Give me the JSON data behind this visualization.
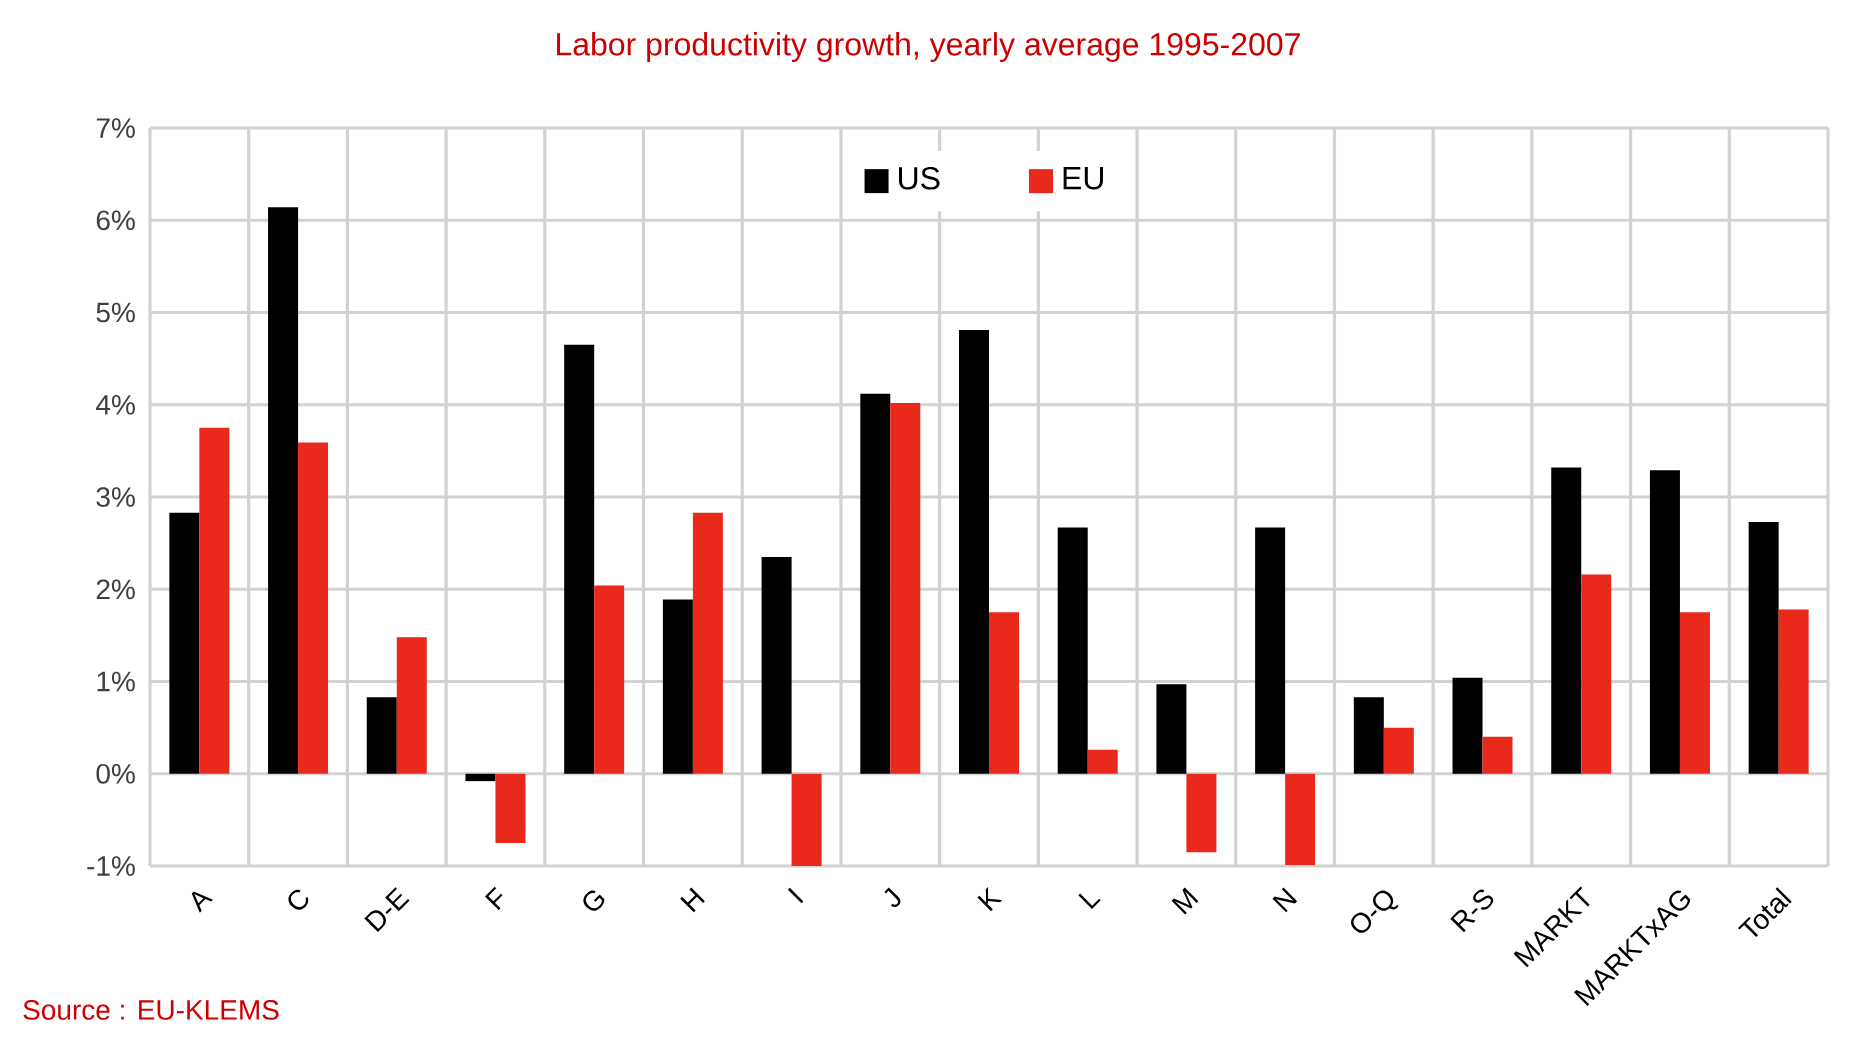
{
  "chart_data": {
    "type": "bar",
    "title": "Labor productivity growth, yearly average 1995-2007",
    "categories": [
      "A",
      "C",
      "D-E",
      "F",
      "G",
      "H",
      "I",
      "J",
      "K",
      "L",
      "M",
      "N",
      "O-Q",
      "R-S",
      "MARKT",
      "MARKTxAG",
      "Total"
    ],
    "series": [
      {
        "name": "US",
        "color": "#000000",
        "values": [
          2.83,
          6.14,
          0.83,
          -0.08,
          4.65,
          1.89,
          2.35,
          4.12,
          4.81,
          2.67,
          0.97,
          2.67,
          0.83,
          1.04,
          3.32,
          3.29,
          2.73
        ]
      },
      {
        "name": "EU",
        "color": "#e8291c",
        "values": [
          3.75,
          3.59,
          1.48,
          -0.75,
          2.04,
          2.83,
          -1.0,
          4.02,
          1.75,
          0.26,
          -0.85,
          -0.99,
          0.5,
          0.4,
          2.16,
          1.75,
          1.78
        ]
      }
    ],
    "ylim": [
      -1,
      7
    ],
    "yticks": [
      {
        "value": -1,
        "label": "-1%"
      },
      {
        "value": 0,
        "label": "0%"
      },
      {
        "value": 1,
        "label": "1%"
      },
      {
        "value": 2,
        "label": "2%"
      },
      {
        "value": 3,
        "label": "3%"
      },
      {
        "value": 4,
        "label": "4%"
      },
      {
        "value": 5,
        "label": "5%"
      },
      {
        "value": 6,
        "label": "6%"
      },
      {
        "value": 7,
        "label": "7%"
      }
    ],
    "grid": true,
    "legend": "top",
    "annotations": [
      "Source : EU-KLEMS"
    ]
  }
}
